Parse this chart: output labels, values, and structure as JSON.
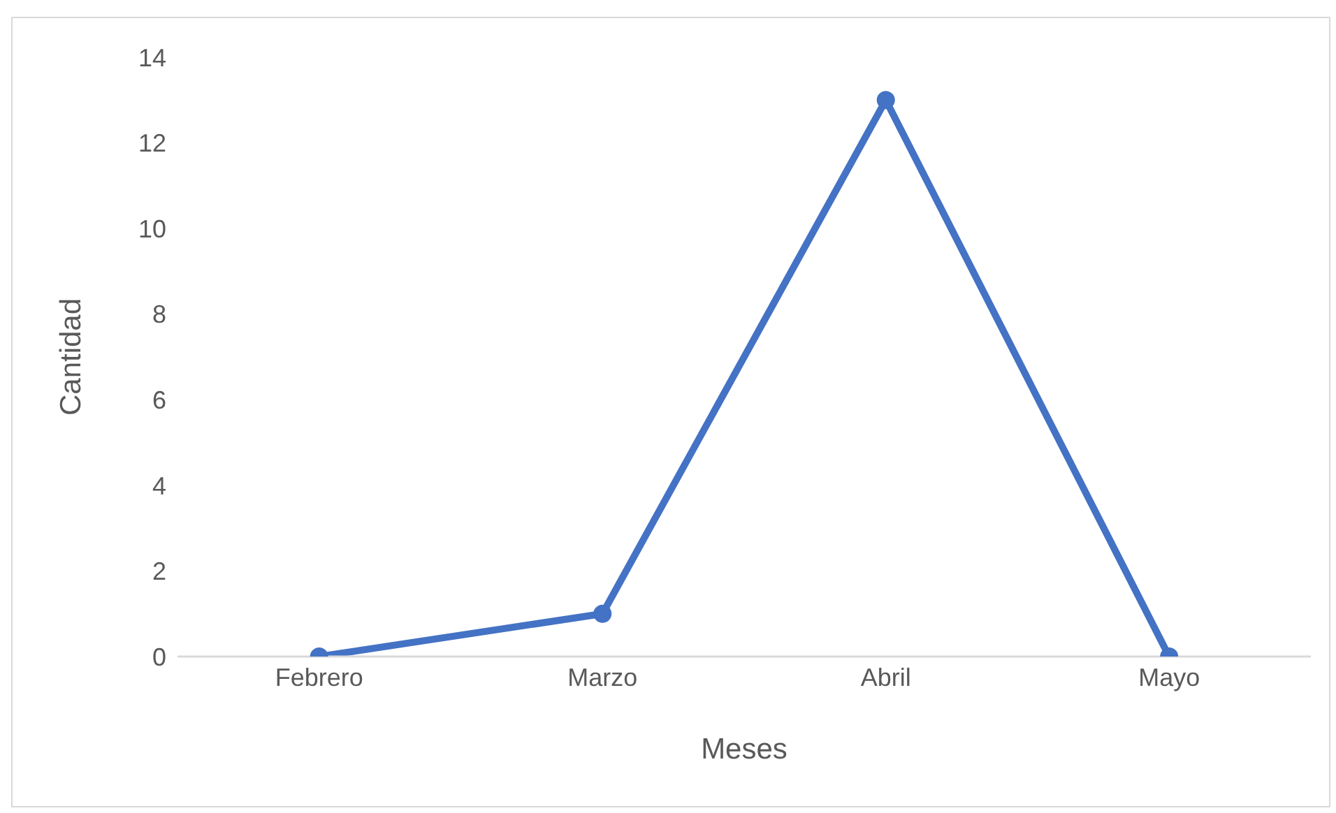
{
  "chart_data": {
    "type": "line",
    "xlabel": "Meses",
    "ylabel": "Cantidad",
    "categories": [
      "Febrero",
      "Marzo",
      "Abril",
      "Mayo"
    ],
    "series": [
      {
        "color": "#4472c4",
        "values": [
          0,
          1,
          13,
          0
        ]
      }
    ],
    "ylim": [
      0,
      14
    ],
    "yticks": [
      0,
      2,
      4,
      6,
      8,
      10,
      12,
      14
    ],
    "grid": false,
    "legend": false,
    "marker": "circle",
    "line_style": "solid"
  }
}
